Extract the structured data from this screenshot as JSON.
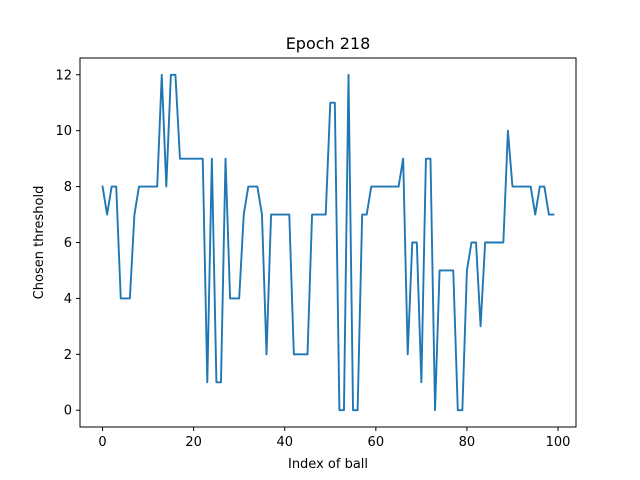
{
  "chart_data": {
    "type": "line",
    "title": "Epoch 218",
    "xlabel": "Index of ball",
    "ylabel": "Chosen threshold",
    "xlim": [
      -4.95,
      103.95
    ],
    "ylim": [
      -0.6,
      12.6
    ],
    "xticks": [
      0,
      20,
      40,
      60,
      80,
      100
    ],
    "yticks": [
      0,
      2,
      4,
      6,
      8,
      10,
      12
    ],
    "grid": false,
    "series": [
      {
        "color": "#1f77b4",
        "x": [
          0,
          1,
          2,
          3,
          4,
          5,
          6,
          7,
          8,
          9,
          10,
          11,
          12,
          13,
          14,
          15,
          16,
          17,
          18,
          19,
          20,
          21,
          22,
          23,
          24,
          25,
          26,
          27,
          28,
          29,
          30,
          31,
          32,
          33,
          34,
          35,
          36,
          37,
          38,
          39,
          40,
          41,
          42,
          43,
          44,
          45,
          46,
          47,
          48,
          49,
          50,
          51,
          52,
          53,
          54,
          55,
          56,
          57,
          58,
          59,
          60,
          61,
          62,
          63,
          64,
          65,
          66,
          67,
          68,
          69,
          70,
          71,
          72,
          73,
          74,
          75,
          76,
          77,
          78,
          79,
          80,
          81,
          82,
          83,
          84,
          85,
          86,
          87,
          88,
          89,
          90,
          91,
          92,
          93,
          94,
          95,
          96,
          97,
          98,
          99
        ],
        "y": [
          8,
          7,
          8,
          8,
          4,
          4,
          4,
          7,
          8,
          8,
          8,
          8,
          8,
          12,
          8,
          12,
          12,
          9,
          9,
          9,
          9,
          9,
          9,
          1,
          9,
          1,
          1,
          9,
          4,
          4,
          4,
          7,
          8,
          8,
          8,
          7,
          2,
          7,
          7,
          7,
          7,
          7,
          2,
          2,
          2,
          2,
          7,
          7,
          7,
          7,
          11,
          11,
          0,
          0,
          12,
          0,
          0,
          7,
          7,
          8,
          8,
          8,
          8,
          8,
          8,
          8,
          9,
          2,
          6,
          6,
          1,
          9,
          9,
          0,
          5,
          5,
          5,
          5,
          0,
          0,
          5,
          6,
          6,
          3,
          6,
          6,
          6,
          6,
          6,
          10,
          8,
          8,
          8,
          8,
          8,
          7,
          8,
          8,
          7,
          7
        ]
      }
    ]
  }
}
